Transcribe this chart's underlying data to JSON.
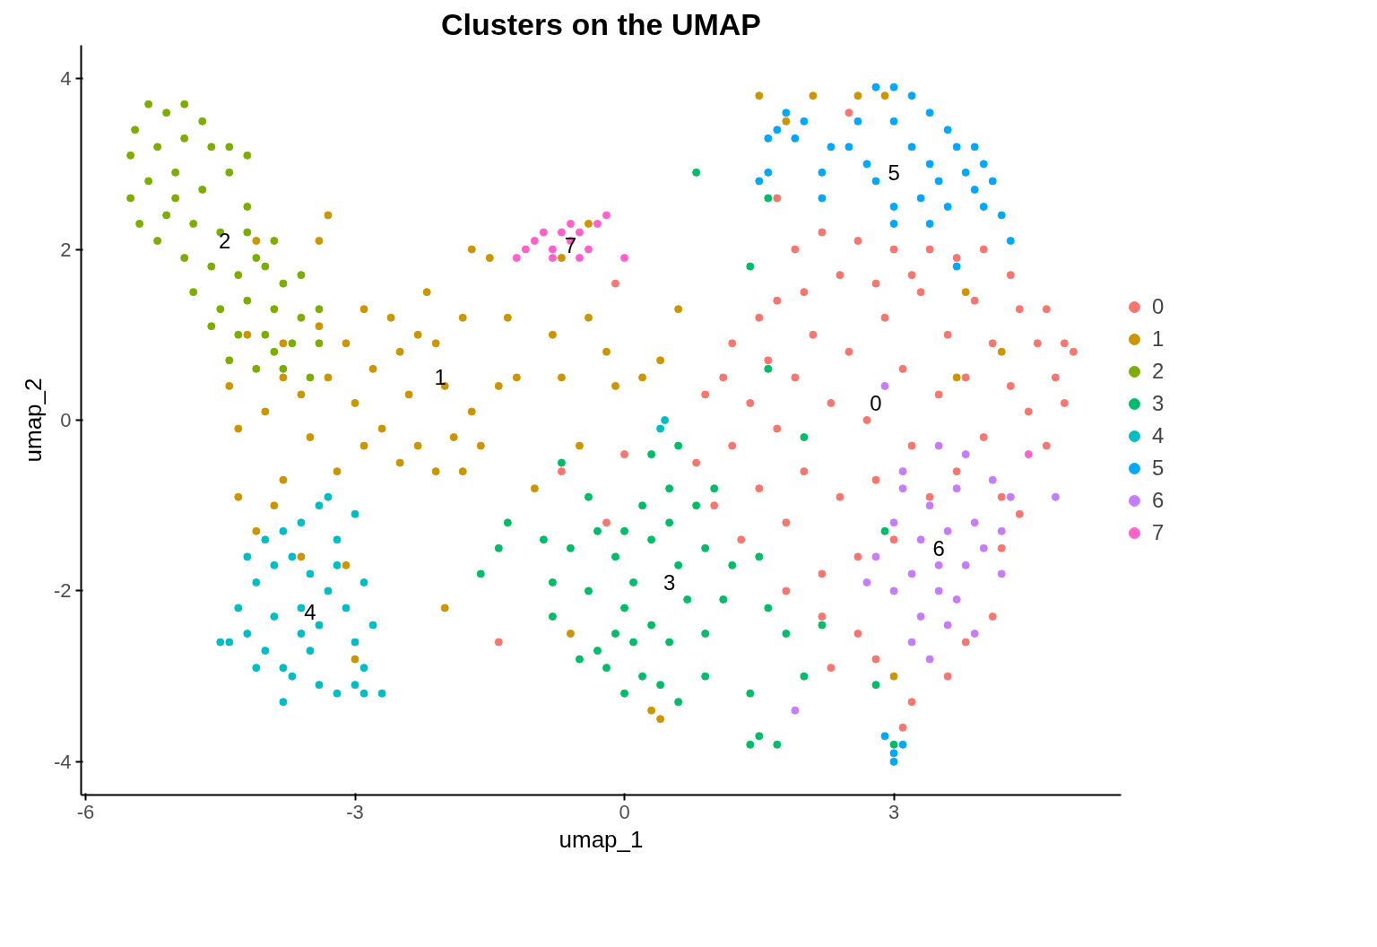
{
  "chart_data": {
    "type": "scatter",
    "title": "Clusters on the UMAP",
    "xlabel": "umap_1",
    "ylabel": "umap_2",
    "xlim": [
      -6.05,
      5.53
    ],
    "ylim": [
      -4.39,
      4.39
    ],
    "xticks": [
      -6,
      -3,
      0,
      3
    ],
    "yticks": [
      -4,
      -2,
      0,
      2,
      4
    ],
    "grid": false,
    "legend": "right",
    "marker": "circle",
    "annotations": [
      "0",
      "1",
      "2",
      "3",
      "4",
      "5",
      "6",
      "7"
    ],
    "series": [
      {
        "name": "0",
        "color": "#f8766d",
        "x": [
          0.8,
          0.9,
          1.0,
          1.1,
          1.2,
          1.3,
          1.4,
          1.5,
          1.6,
          1.7,
          1.8,
          1.9,
          2.0,
          2.1,
          2.2,
          2.3,
          2.4,
          2.5,
          2.6,
          2.7,
          2.8,
          2.9,
          3.0,
          3.1,
          3.2,
          3.3,
          3.4,
          3.5,
          3.6,
          3.7,
          3.8,
          3.9,
          4.0,
          4.1,
          4.2,
          4.3,
          4.4,
          4.5,
          4.6,
          4.7,
          4.8,
          4.9,
          5.0,
          4.9,
          4.7,
          4.3,
          4.0,
          3.7,
          3.4,
          3.0,
          2.6,
          2.2,
          1.9,
          2.4,
          2.8,
          3.2,
          1.7,
          2.0,
          1.5,
          1.2,
          0.0,
          -0.2,
          -0.7,
          -1.4,
          -0.1,
          2.5,
          1.7,
          2.6,
          2.8,
          3.2,
          3.1,
          3.8,
          4.1,
          2.2,
          1.8,
          3.6,
          4.2,
          4.4,
          2.3
        ],
        "values": [
          -0.5,
          0.3,
          -1.0,
          0.5,
          -0.3,
          -1.4,
          0.2,
          -0.8,
          0.7,
          -0.1,
          -1.2,
          0.5,
          -0.6,
          1.0,
          -1.8,
          0.2,
          -0.9,
          0.8,
          -1.6,
          0.0,
          -0.7,
          1.2,
          -1.4,
          0.6,
          -0.3,
          1.5,
          -0.9,
          0.3,
          1.0,
          -0.6,
          0.5,
          1.4,
          -0.2,
          0.9,
          -0.9,
          0.4,
          1.3,
          0.1,
          0.9,
          -0.3,
          0.5,
          0.9,
          0.8,
          0.2,
          1.3,
          1.7,
          2.0,
          1.9,
          2.0,
          2.0,
          2.1,
          2.2,
          2.0,
          1.7,
          1.6,
          1.7,
          1.4,
          1.5,
          1.2,
          0.9,
          -0.4,
          -1.2,
          -0.6,
          -2.6,
          1.6,
          3.6,
          2.6,
          -2.5,
          -2.8,
          -3.3,
          -3.6,
          -2.6,
          -2.3,
          -2.3,
          -2.0,
          -3.0,
          -1.5,
          -1.1,
          -2.9
        ]
      },
      {
        "name": "1",
        "color": "#cd9600",
        "x": [
          -4.4,
          -4.3,
          -4.0,
          -3.8,
          -3.6,
          -3.4,
          -3.3,
          -3.1,
          -3.0,
          -2.9,
          -2.8,
          -2.7,
          -2.6,
          -2.5,
          -2.4,
          -2.3,
          -2.2,
          -2.1,
          -2.0,
          -1.9,
          -1.8,
          -1.7,
          -2.1,
          -2.5,
          -2.9,
          -3.2,
          -3.5,
          -3.8,
          -3.9,
          -4.3,
          -4.1,
          -3.6,
          -3.1,
          -3.0,
          -1.8,
          -1.6,
          -1.4,
          -1.3,
          -1.5,
          -1.7,
          -3.3,
          -3.4,
          -4.1,
          -1.2,
          -1.0,
          -0.8,
          -0.7,
          -0.5,
          -0.4,
          -0.2,
          -0.1,
          0.2,
          0.4,
          -0.6,
          -2.0,
          -0.4,
          0.6,
          -0.7,
          2.1,
          1.5,
          2.6,
          2.9,
          1.8,
          3.8,
          3.7,
          4.2,
          3.0,
          0.4,
          0.3,
          -4.2,
          -3.8,
          -2.3
        ],
        "values": [
          0.4,
          -0.1,
          0.1,
          0.9,
          0.3,
          1.1,
          0.5,
          0.9,
          0.2,
          1.3,
          0.6,
          -0.1,
          1.2,
          0.8,
          0.3,
          -0.3,
          1.5,
          0.9,
          0.4,
          -0.2,
          1.2,
          0.1,
          -0.6,
          -0.5,
          -0.3,
          -0.6,
          -0.2,
          -0.7,
          -1.0,
          -0.9,
          -1.3,
          -1.6,
          -1.7,
          -2.8,
          -0.6,
          -0.3,
          0.4,
          1.2,
          1.9,
          2.0,
          2.4,
          2.1,
          2.1,
          0.5,
          -0.8,
          1.0,
          0.5,
          -0.3,
          1.2,
          0.8,
          0.4,
          0.5,
          0.7,
          -2.5,
          -2.2,
          2.3,
          1.3,
          1.9,
          3.8,
          3.8,
          3.8,
          3.8,
          3.5,
          1.5,
          0.5,
          0.8,
          -3.0,
          -3.5,
          -3.4,
          1.0,
          0.5,
          1.0
        ]
      },
      {
        "name": "2",
        "color": "#7cae00",
        "x": [
          -5.45,
          -5.3,
          -5.1,
          -4.9,
          -4.7,
          -5.5,
          -5.2,
          -4.9,
          -4.6,
          -4.4,
          -4.2,
          -5.5,
          -5.3,
          -5.0,
          -4.7,
          -4.4,
          -4.2,
          -5.4,
          -5.1,
          -4.8,
          -4.5,
          -4.2,
          -3.9,
          -5.2,
          -4.9,
          -4.6,
          -4.3,
          -4.0,
          -3.8,
          -3.6,
          -4.8,
          -4.5,
          -4.2,
          -3.9,
          -3.6,
          -3.4,
          -4.6,
          -4.3,
          -4.0,
          -3.7,
          -3.4,
          -4.4,
          -4.1,
          -3.8,
          -3.5,
          -3.9,
          -5.0,
          -4.1
        ],
        "values": [
          3.4,
          3.7,
          3.6,
          3.7,
          3.5,
          3.1,
          3.2,
          3.3,
          3.2,
          3.2,
          3.1,
          2.6,
          2.8,
          2.9,
          2.7,
          2.9,
          2.5,
          2.3,
          2.4,
          2.3,
          2.2,
          2.2,
          2.1,
          2.1,
          1.9,
          1.8,
          1.7,
          1.8,
          1.6,
          1.7,
          1.5,
          1.3,
          1.4,
          1.3,
          1.2,
          1.3,
          1.1,
          1.0,
          1.0,
          0.9,
          0.9,
          0.7,
          0.6,
          0.6,
          0.5,
          0.8,
          2.6,
          1.9
        ]
      },
      {
        "name": "3",
        "color": "#00be67",
        "x": [
          -0.3,
          -0.2,
          -0.1,
          0.0,
          0.1,
          0.2,
          0.3,
          0.1,
          -0.1,
          -0.3,
          -0.4,
          -0.8,
          -0.8,
          -0.6,
          0.0,
          0.3,
          0.5,
          0.6,
          0.7,
          0.5,
          0.4,
          0.6,
          0.9,
          0.9,
          1.1,
          1.2,
          0.9,
          0.8,
          0.5,
          0.3,
          -0.4,
          -0.7,
          -1.3,
          -1.6,
          -1.4,
          -0.9,
          1.5,
          1.6,
          1.8,
          1.4,
          1.7,
          1.5,
          1.4,
          2.0,
          2.2,
          2.8,
          2.9,
          3.0,
          0.8,
          1.4,
          1.6,
          1.6,
          2.0,
          0.6,
          1.0,
          0.2,
          -0.5,
          0.0
        ],
        "values": [
          -2.7,
          -2.9,
          -2.5,
          -2.2,
          -2.6,
          -3.0,
          -2.4,
          -1.9,
          -1.6,
          -1.3,
          -2.0,
          -1.9,
          -2.3,
          -1.5,
          -1.3,
          -1.4,
          -1.2,
          -1.7,
          -2.1,
          -2.6,
          -3.1,
          -3.3,
          -3.0,
          -2.5,
          -2.1,
          -1.7,
          -1.5,
          -1.0,
          -0.8,
          -0.4,
          -0.9,
          -0.5,
          -1.2,
          -1.8,
          -1.5,
          -1.4,
          -1.6,
          -2.2,
          -2.5,
          -3.2,
          -3.8,
          -3.7,
          -3.8,
          -3.0,
          -2.4,
          -3.1,
          -1.3,
          -3.8,
          2.9,
          1.8,
          2.6,
          0.6,
          -0.2,
          -0.3,
          -0.8,
          -1.0,
          -2.8,
          -3.2
        ]
      },
      {
        "name": "4",
        "color": "#00bfc4",
        "x": [
          -4.4,
          -4.3,
          -4.2,
          -4.1,
          -4.0,
          -3.9,
          -3.8,
          -3.7,
          -3.9,
          -4.2,
          -4.0,
          -3.8,
          -3.6,
          -3.7,
          -3.5,
          -3.4,
          -3.3,
          -3.2,
          -3.0,
          -3.3,
          -3.1,
          -2.9,
          -2.8,
          -3.0,
          -3.5,
          -3.6,
          -3.4,
          -3.2,
          -3.0,
          -2.9,
          -2.7,
          -2.9,
          -3.4,
          -4.1,
          -3.8,
          -3.2,
          -3.6,
          -4.5,
          0.4,
          0.45
        ],
        "values": [
          -2.6,
          -2.2,
          -2.5,
          -1.9,
          -2.7,
          -2.3,
          -2.9,
          -3.0,
          -1.7,
          -1.6,
          -1.4,
          -1.3,
          -1.2,
          -1.6,
          -1.8,
          -1.0,
          -0.9,
          -1.4,
          -1.1,
          -2.0,
          -2.2,
          -1.9,
          -2.4,
          -2.6,
          -2.7,
          -2.2,
          -3.1,
          -3.2,
          -3.1,
          -3.2,
          -3.2,
          -2.9,
          -2.4,
          -2.9,
          -3.3,
          -1.7,
          -2.5,
          -2.6,
          -0.1,
          0.0
        ]
      },
      {
        "name": "5",
        "color": "#00a9ff",
        "x": [
          1.6,
          1.7,
          1.9,
          2.0,
          1.8,
          1.6,
          1.5,
          2.2,
          2.3,
          2.6,
          2.7,
          2.5,
          2.8,
          3.0,
          3.2,
          3.4,
          3.0,
          3.2,
          3.4,
          3.6,
          3.7,
          3.9,
          4.0,
          4.1,
          3.9,
          3.8,
          3.5,
          3.3,
          3.6,
          3.4,
          4.0,
          4.2,
          2.8,
          2.2,
          3.0,
          3.0,
          3.7,
          3.0,
          3.1,
          2.9,
          3.0,
          4.3
        ],
        "values": [
          3.3,
          3.4,
          3.3,
          3.5,
          3.6,
          2.9,
          2.8,
          2.9,
          3.2,
          3.5,
          3.0,
          3.2,
          3.9,
          3.9,
          3.8,
          3.6,
          3.5,
          3.2,
          3.0,
          3.4,
          3.2,
          3.2,
          3.0,
          2.8,
          2.7,
          2.9,
          2.8,
          2.6,
          2.5,
          2.3,
          2.5,
          2.4,
          2.8,
          2.6,
          2.5,
          2.3,
          1.8,
          -3.9,
          -3.8,
          -3.7,
          -4.0,
          2.1
        ]
      },
      {
        "name": "6",
        "color": "#c77cff",
        "x": [
          2.8,
          3.0,
          3.1,
          3.2,
          3.3,
          3.4,
          3.5,
          3.6,
          3.7,
          3.8,
          3.9,
          4.0,
          4.1,
          3.3,
          3.6,
          3.2,
          3.4,
          3.5,
          3.7,
          4.2,
          4.3,
          3.0,
          2.7,
          3.1,
          3.5,
          2.9,
          1.9,
          4.8,
          3.8,
          4.2,
          3.9
        ],
        "values": [
          -1.6,
          -1.2,
          -0.8,
          -1.8,
          -1.4,
          -1.0,
          -2.0,
          -1.3,
          -0.8,
          -1.7,
          -1.2,
          -1.5,
          -0.7,
          -2.3,
          -2.4,
          -2.6,
          -2.8,
          -1.7,
          -2.1,
          -1.3,
          -0.9,
          -2.0,
          -1.9,
          -0.6,
          -0.3,
          0.4,
          -3.4,
          -0.9,
          -0.4,
          -1.8,
          -2.5
        ]
      },
      {
        "name": "7",
        "color": "#ff61cc",
        "x": [
          -1.2,
          -1.1,
          -1.0,
          -0.9,
          -0.8,
          -0.7,
          -0.6,
          -0.5,
          -0.4,
          -0.3,
          -0.2,
          -0.8,
          -0.5,
          0.0,
          -0.6,
          4.5
        ],
        "values": [
          1.9,
          2.0,
          2.1,
          2.2,
          2.0,
          2.2,
          2.1,
          2.2,
          2.0,
          2.3,
          2.4,
          1.9,
          1.9,
          1.9,
          2.3,
          -0.4
        ]
      }
    ]
  }
}
